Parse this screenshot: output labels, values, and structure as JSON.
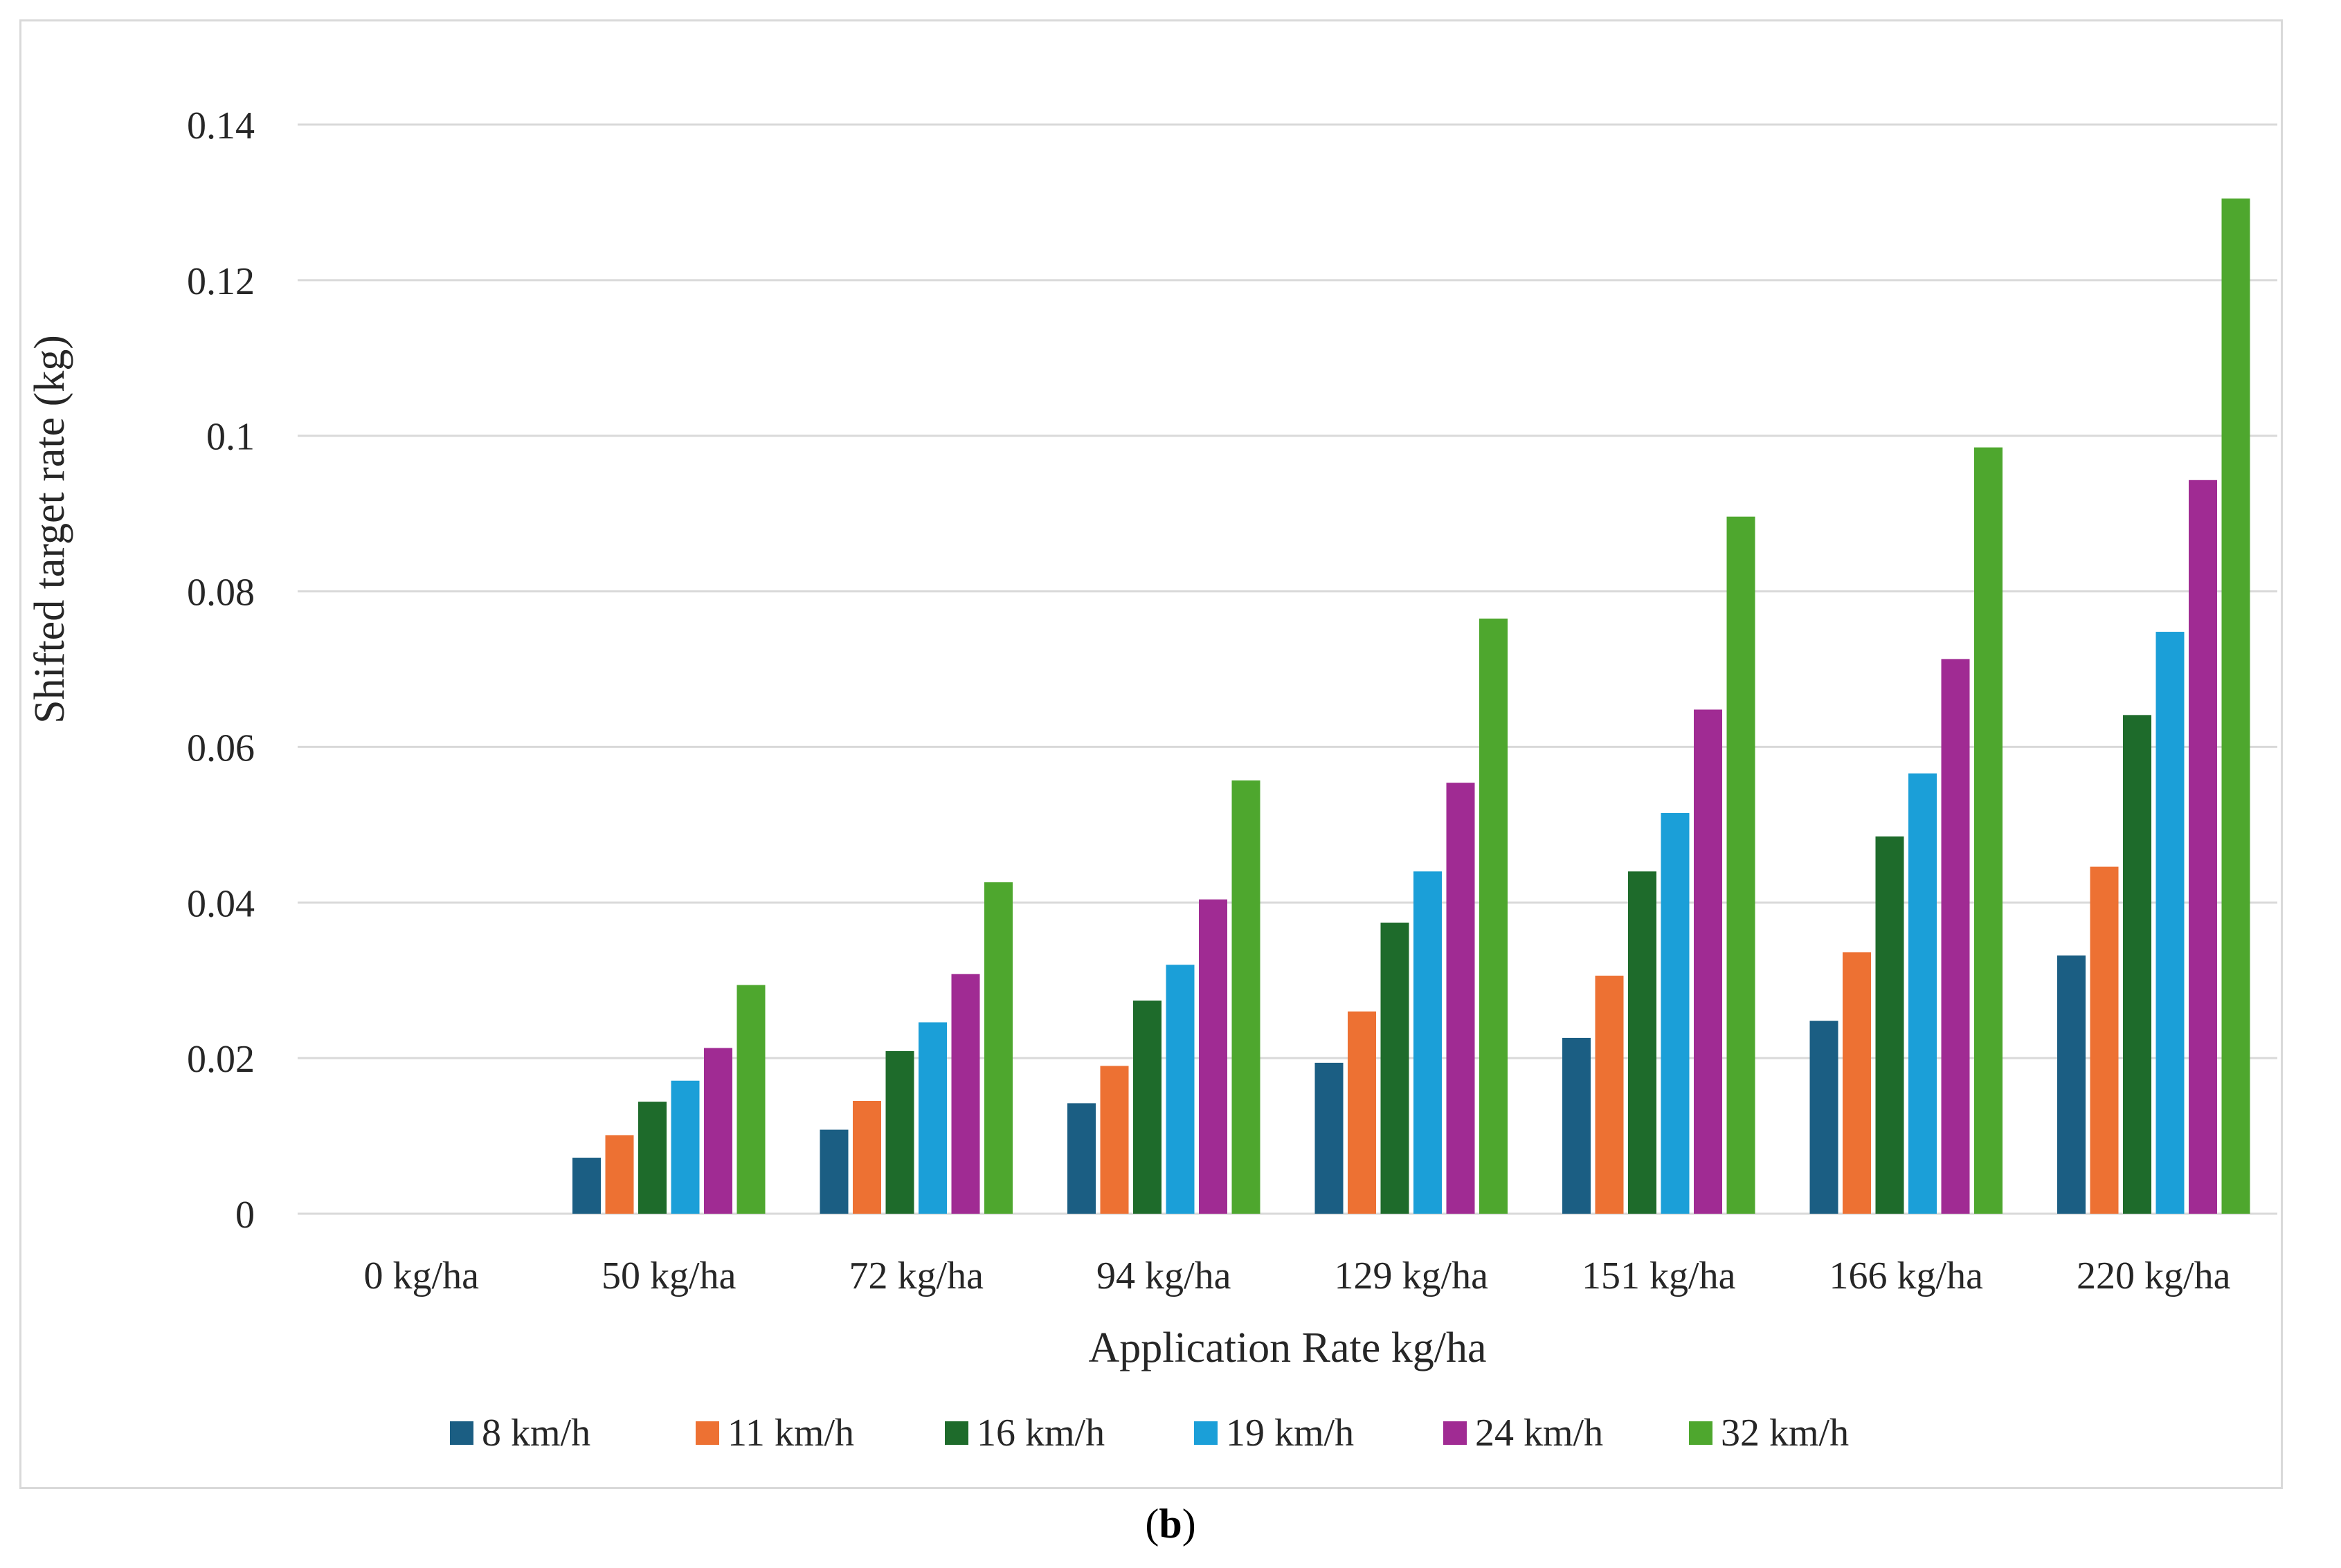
{
  "caption": {
    "open": "(",
    "letter": "b",
    "close": ")"
  },
  "chart_data": {
    "type": "bar",
    "title": "",
    "xlabel": "Application Rate kg/ha",
    "ylabel": "Shifted target rate (kg)",
    "ylim": [
      0,
      0.14
    ],
    "yticks": [
      0,
      0.02,
      0.04,
      0.06,
      0.08,
      0.1,
      0.12,
      0.14
    ],
    "ytick_labels": [
      "0",
      "0.02",
      "0.04",
      "0.06",
      "0.08",
      "0.1",
      "0.12",
      "0.14"
    ],
    "grid": true,
    "legend_position": "bottom",
    "categories": [
      "0 kg/ha",
      "50 kg/ha",
      "72 kg/ha",
      "94 kg/ha",
      "129 kg/ha",
      "151 kg/ha",
      "166 kg/ha",
      "220 kg/ha"
    ],
    "series": [
      {
        "name": "8 km/h",
        "color": "#1b5e83",
        "values": [
          0,
          0.0072,
          0.0108,
          0.0142,
          0.0194,
          0.0226,
          0.0248,
          0.0332
        ]
      },
      {
        "name": "11 km/h",
        "color": "#ed7133",
        "values": [
          0,
          0.0101,
          0.0145,
          0.019,
          0.026,
          0.0306,
          0.0336,
          0.0446
        ]
      },
      {
        "name": "16 km/h",
        "color": "#1e6b2b",
        "values": [
          0,
          0.0144,
          0.0209,
          0.0274,
          0.0374,
          0.044,
          0.0485,
          0.0641
        ]
      },
      {
        "name": "19 km/h",
        "color": "#1b9fd8",
        "values": [
          0,
          0.0171,
          0.0246,
          0.032,
          0.044,
          0.0515,
          0.0566,
          0.0748
        ]
      },
      {
        "name": "24 km/h",
        "color": "#a02b93",
        "values": [
          0,
          0.0213,
          0.0308,
          0.0404,
          0.0554,
          0.0648,
          0.0713,
          0.0943
        ]
      },
      {
        "name": "32 km/h",
        "color": "#4ea72e",
        "values": [
          0,
          0.0294,
          0.0426,
          0.0557,
          0.0765,
          0.0896,
          0.0985,
          0.1305
        ]
      }
    ],
    "colors": {
      "gridline": "#d9d9d9",
      "text": "#262626",
      "border": "#d9d9d9"
    }
  }
}
